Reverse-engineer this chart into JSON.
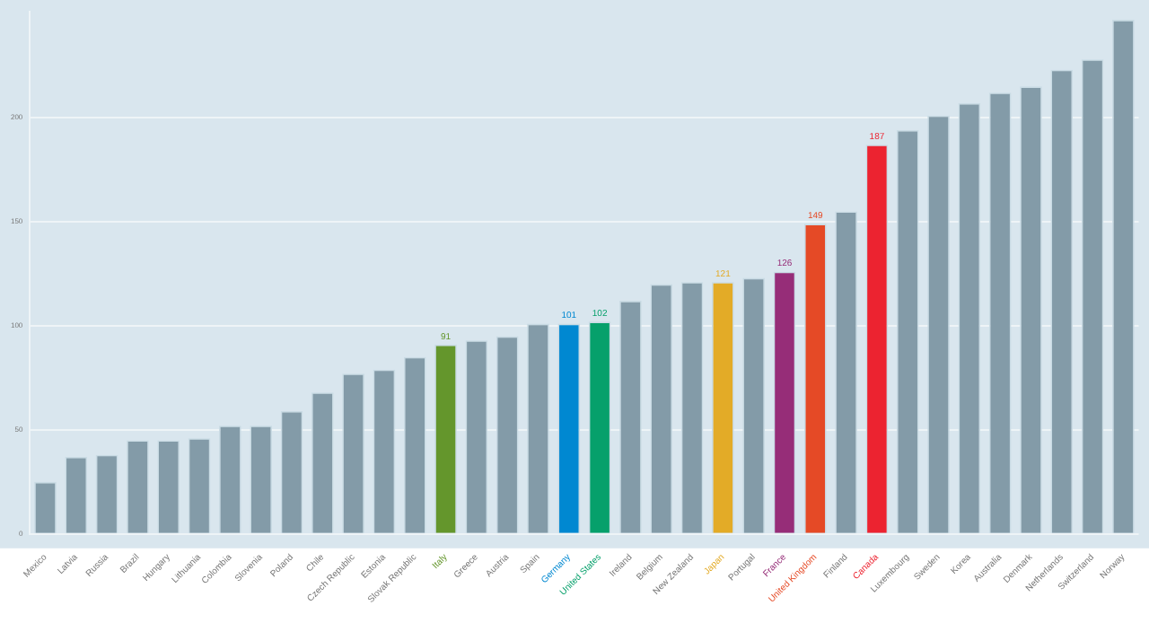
{
  "chart_data": {
    "type": "bar",
    "categories": [
      "Mexico",
      "Latvia",
      "Russia",
      "Brazil",
      "Hungary",
      "Lithuania",
      "Colombia",
      "Slovenia",
      "Poland",
      "Chile",
      "Czech Republic",
      "Estonia",
      "Slovak Republic",
      "Italy",
      "Greece",
      "Austria",
      "Spain",
      "Germany",
      "United States",
      "Ireland",
      "Belgium",
      "New Zealand",
      "Japan",
      "Portugal",
      "France",
      "United Kingdom",
      "Finland",
      "Canada",
      "Luxembourg",
      "Sweden",
      "Korea",
      "Australia",
      "Denmark",
      "Netherlands",
      "Switzerland",
      "Norway"
    ],
    "values": [
      25,
      37,
      38,
      45,
      45,
      46,
      52,
      52,
      59,
      68,
      77,
      79,
      85,
      91,
      93,
      95,
      101,
      101,
      102,
      112,
      120,
      121,
      121,
      123,
      126,
      149,
      155,
      187,
      194,
      201,
      207,
      212,
      215,
      223,
      228,
      247
    ],
    "colors": [
      "#839ba8",
      "#839ba8",
      "#839ba8",
      "#839ba8",
      "#839ba8",
      "#839ba8",
      "#839ba8",
      "#839ba8",
      "#839ba8",
      "#839ba8",
      "#839ba8",
      "#839ba8",
      "#839ba8",
      "#64962c",
      "#839ba8",
      "#839ba8",
      "#839ba8",
      "#0088d1",
      "#06a06b",
      "#839ba8",
      "#839ba8",
      "#839ba8",
      "#e3ab27",
      "#839ba8",
      "#962d78",
      "#e54a26",
      "#839ba8",
      "#ec2330",
      "#839ba8",
      "#839ba8",
      "#839ba8",
      "#839ba8",
      "#839ba8",
      "#839ba8",
      "#839ba8",
      "#839ba8"
    ],
    "value_labels": [
      null,
      null,
      null,
      null,
      null,
      null,
      null,
      null,
      null,
      null,
      null,
      null,
      null,
      "91",
      null,
      null,
      null,
      "101",
      "102",
      null,
      null,
      null,
      "121",
      null,
      "126",
      "149",
      null,
      "187",
      null,
      null,
      null,
      null,
      null,
      null,
      null,
      null
    ],
    "ylim": [
      0,
      251
    ],
    "yticks": [
      0,
      50,
      100,
      150,
      200
    ],
    "grid": "y",
    "legend": false
  }
}
